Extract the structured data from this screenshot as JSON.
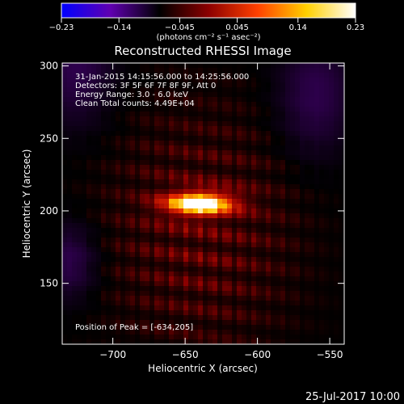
{
  "chart_data": {
    "type": "heatmap",
    "title": "Reconstructed RHESSI Image",
    "xlabel": "Heliocentric X (arcsec)",
    "ylabel": "Heliocentric Y (arcsec)",
    "xlim": [
      -735,
      -540
    ],
    "ylim": [
      108,
      302
    ],
    "xticks": [
      -700,
      -650,
      -600,
      -550
    ],
    "yticks": [
      150,
      200,
      250,
      300
    ],
    "xtick_labels": [
      "−700",
      "−650",
      "−600",
      "−550"
    ],
    "ytick_labels": [
      "150",
      "200",
      "250",
      "300"
    ],
    "colorbar": {
      "range": [
        -0.23,
        0.23
      ],
      "ticks": [
        -0.23,
        -0.14,
        -0.045,
        0.045,
        0.14,
        0.23
      ],
      "tick_labels": [
        "−0.23",
        "−0.14",
        "−0.045",
        "0.045",
        "0.14",
        "0.23"
      ],
      "unit_label": "(photons cm⁻² s⁻¹ asec⁻²)",
      "colors": [
        "#0000ff",
        "#6000b0",
        "#000000",
        "#8b0000",
        "#ff4000",
        "#ffd000",
        "#ffffff"
      ]
    },
    "annotations": [
      "31-Jan-2015 14:15:56.000 to 14:25:56.000",
      "Detectors: 3F 5F 6F 7F 8F 9F, Att 0",
      "Energy Range: 3.0 - 6.0 keV",
      "Clean    Total counts: 4.49E+04"
    ],
    "peak_label": "Position of Peak = [-634,205]",
    "peak": {
      "x": -634,
      "y": 205,
      "value": 0.23
    },
    "source": {
      "x": -640,
      "y": 205,
      "sigma_x": 16,
      "sigma_y": 5.5
    },
    "timestamp": "25-Jul-2017 10:00"
  }
}
